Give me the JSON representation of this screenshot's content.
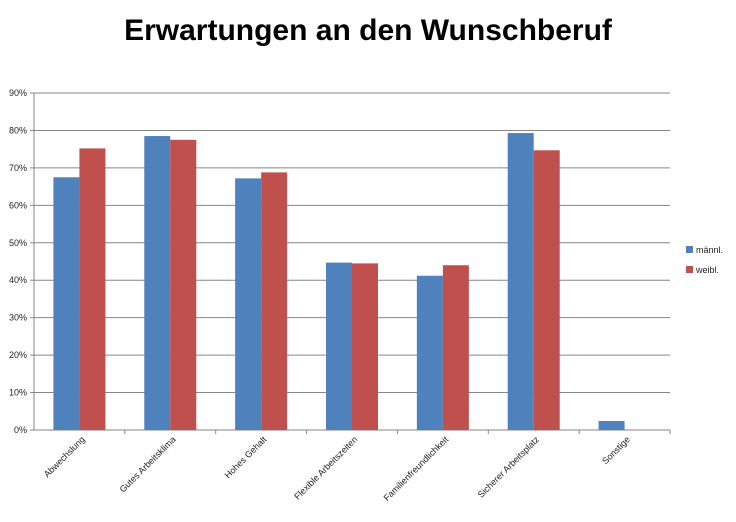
{
  "chart_data": {
    "type": "bar",
    "title": "Erwartungen an den Wunschberuf",
    "categories": [
      "Abwechslung",
      "Gutes Arbeitsklima",
      "Hohes Gehalt",
      "Flexible Arbeitszeiten",
      "Familienfreundlichkeit",
      "Sicherer Arbeitsplatz",
      "Sonstige"
    ],
    "series": [
      {
        "name": "männl.",
        "color": "#4F81BD",
        "values": [
          67.5,
          78.5,
          67.2,
          44.7,
          41.2,
          79.3,
          2.4
        ]
      },
      {
        "name": "weibl.",
        "color": "#C0504D",
        "values": [
          75.2,
          77.5,
          68.8,
          44.5,
          44.0,
          74.7,
          0
        ]
      }
    ],
    "ylim": [
      0,
      90
    ],
    "yticks": [
      "0%",
      "10%",
      "20%",
      "30%",
      "40%",
      "50%",
      "60%",
      "70%",
      "80%",
      "90%"
    ],
    "grid": true,
    "legend_position": "right"
  }
}
